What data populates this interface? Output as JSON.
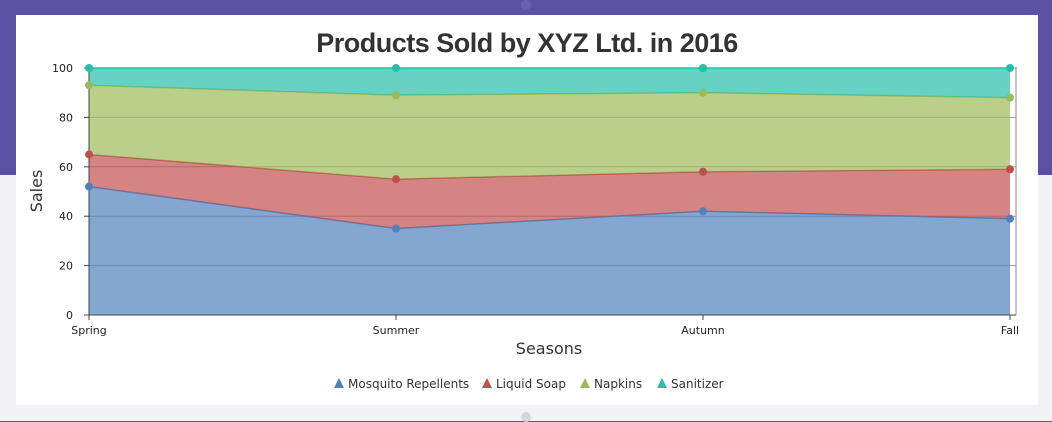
{
  "chart_data": {
    "type": "area",
    "stacking": "percent",
    "title": "Products Sold by XYZ Ltd. in 2016",
    "xlabel": "Seasons",
    "ylabel": "Sales",
    "categories": [
      "Spring",
      "Summer",
      "Autumn",
      "Fall"
    ],
    "ylim": [
      0,
      100
    ],
    "yticks": [
      0,
      20,
      40,
      60,
      80,
      100
    ],
    "grid": true,
    "legend_position": "bottom",
    "series": [
      {
        "name": "Mosquito Repellents",
        "color": "#4f81bc",
        "values": [
          52,
          35,
          42,
          39
        ]
      },
      {
        "name": "Liquid Soap",
        "color": "#c0504e",
        "values": [
          13,
          20,
          16,
          20
        ]
      },
      {
        "name": "Napkins",
        "color": "#9bbb58",
        "values": [
          28,
          34,
          32,
          29
        ]
      },
      {
        "name": "Sanitizer",
        "color": "#23bfaa",
        "values": [
          7,
          11,
          10,
          12
        ]
      }
    ]
  }
}
